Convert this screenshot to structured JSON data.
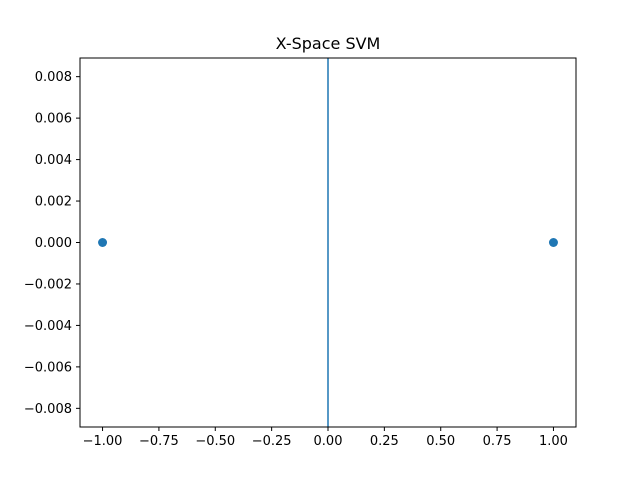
{
  "chart_data": {
    "type": "scatter",
    "title": "X-Space SVM",
    "xlabel": "",
    "ylabel": "",
    "xlim": [
      -1.1,
      1.1
    ],
    "ylim": [
      -0.0089,
      0.0089
    ],
    "x_ticks": [
      -1.0,
      -0.75,
      -0.5,
      -0.25,
      0.0,
      0.25,
      0.5,
      0.75,
      1.0
    ],
    "x_tick_labels": [
      "−1.00",
      "−0.75",
      "−0.50",
      "−0.25",
      "0.00",
      "0.25",
      "0.50",
      "0.75",
      "1.00"
    ],
    "y_ticks": [
      0.008,
      0.006,
      0.004,
      0.002,
      0.0,
      -0.002,
      -0.004,
      -0.006,
      -0.008
    ],
    "y_tick_labels": [
      "0.008",
      "0.006",
      "0.004",
      "0.002",
      "0.000",
      "−0.002",
      "−0.004",
      "−0.006",
      "−0.008"
    ],
    "grid": false,
    "series": [
      {
        "kind": "scatter",
        "color": "#1f77b4",
        "points": [
          {
            "x": -1.0,
            "y": 0.0
          },
          {
            "x": 1.0,
            "y": 0.0
          }
        ]
      },
      {
        "kind": "vertical-line",
        "color": "#1f77b4",
        "x": 0.0
      }
    ]
  }
}
